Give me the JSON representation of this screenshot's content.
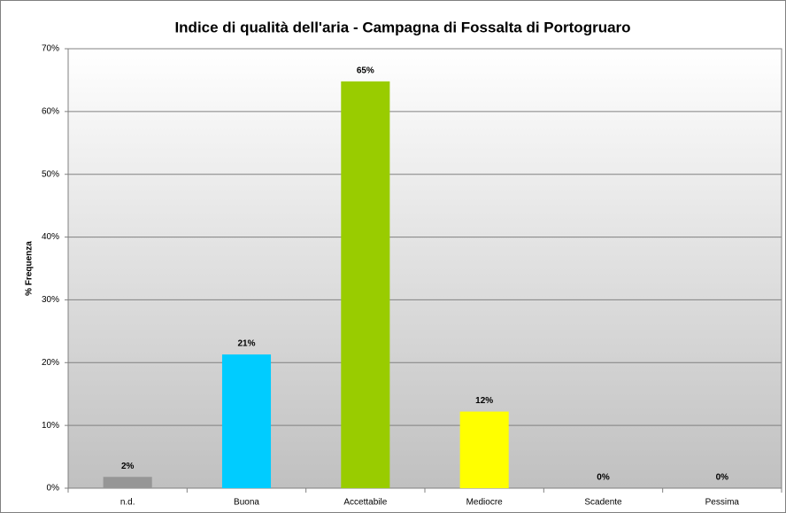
{
  "chart_data": {
    "type": "bar",
    "title": "Indice di qualità dell'aria - Campagna di Fossalta di Portogruaro",
    "y_label": "% Frequenza",
    "categories": [
      "n.d.",
      "Buona",
      "Accettabile",
      "Mediocre",
      "Scadente",
      "Pessima"
    ],
    "values": [
      1.8,
      21.3,
      64.8,
      12.2,
      0,
      0
    ],
    "value_labels": [
      "2%",
      "21%",
      "65%",
      "12%",
      "0%",
      "0%"
    ],
    "colors": [
      "#969696",
      "#00ccff",
      "#99cc00",
      "#ffff00",
      "#ff6600",
      "#ff0000"
    ],
    "ylim": [
      0,
      70
    ],
    "yticks": [
      {
        "value": 0,
        "label": "0%"
      },
      {
        "value": 10,
        "label": "10%"
      },
      {
        "value": 20,
        "label": "20%"
      },
      {
        "value": 30,
        "label": "30%"
      },
      {
        "value": 40,
        "label": "40%"
      },
      {
        "value": 50,
        "label": "50%"
      },
      {
        "value": 60,
        "label": "60%"
      },
      {
        "value": 70,
        "label": "70%"
      }
    ],
    "grid": true
  }
}
